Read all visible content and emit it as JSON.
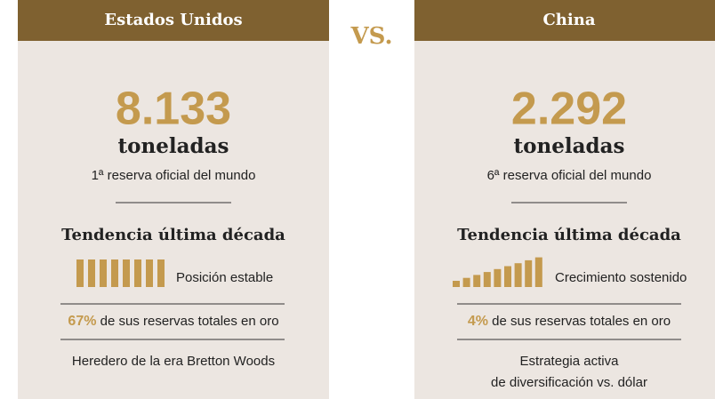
{
  "separator": "VS.",
  "panels": [
    {
      "header": "Estados Unidos",
      "value": "8.133",
      "unit": "toneladas",
      "rank": "1ª reserva oficial del mundo",
      "trend_title": "Tendencia última década",
      "trend_label": "Posición estable",
      "share_value": "67%",
      "share_text": "de sus reservas totales en oro",
      "note": [
        "Heredero de la era Bretton Woods"
      ]
    },
    {
      "header": "China",
      "value": "2.292",
      "unit": "toneladas",
      "rank": "6ª reserva oficial del mundo",
      "trend_title": "Tendencia última década",
      "trend_label": "Crecimiento sostenido",
      "share_value": "4%",
      "share_text": "de sus reservas totales en oro",
      "note": [
        "Estrategia activa",
        "de diversificación vs. dólar"
      ]
    }
  ]
}
